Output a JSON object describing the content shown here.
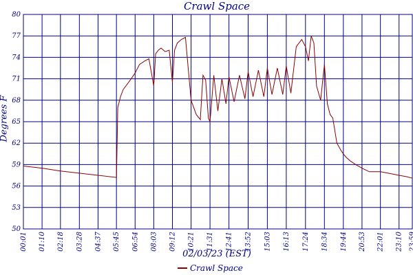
{
  "chart_data": {
    "type": "line",
    "title": "Crawl Space",
    "xlabel": "02/03/23 (EST)",
    "ylabel": "Degrees F",
    "y_ticks": [
      "50",
      "53",
      "56",
      "59",
      "62",
      "65",
      "68",
      "71",
      "74",
      "77",
      "80"
    ],
    "ylim": [
      50,
      80
    ],
    "x_ticks": [
      "00:01",
      "01:10",
      "02:18",
      "03:28",
      "04:37",
      "05:45",
      "06:54",
      "08:03",
      "09:12",
      "10:21",
      "11:31",
      "12:41",
      "13:52",
      "15:03",
      "16:13",
      "17:24",
      "18:34",
      "19:44",
      "20:53",
      "22:01",
      "23:10",
      "23:59"
    ],
    "grid": true,
    "legend": "bottom",
    "series": [
      {
        "name": "Crawl Space",
        "color": "#8b0000",
        "x": [
          "00:01",
          "01:10",
          "02:18",
          "03:28",
          "04:37",
          "05:45",
          "05:50",
          "06:00",
          "06:10",
          "06:30",
          "06:54",
          "07:10",
          "07:30",
          "07:45",
          "08:03",
          "08:10",
          "08:20",
          "08:30",
          "08:45",
          "09:00",
          "09:12",
          "09:20",
          "09:30",
          "09:45",
          "10:00",
          "10:21",
          "10:40",
          "10:55",
          "11:05",
          "11:15",
          "11:25",
          "11:31",
          "11:45",
          "12:00",
          "12:15",
          "12:30",
          "12:41",
          "13:00",
          "13:20",
          "13:40",
          "13:52",
          "14:10",
          "14:30",
          "14:50",
          "15:03",
          "15:20",
          "15:40",
          "16:00",
          "16:13",
          "16:30",
          "16:50",
          "17:10",
          "17:24",
          "17:35",
          "17:45",
          "17:55",
          "18:05",
          "18:20",
          "18:34",
          "18:45",
          "18:55",
          "19:05",
          "19:20",
          "19:35",
          "19:44",
          "19:55",
          "20:10",
          "20:30",
          "20:53",
          "21:20",
          "22:01",
          "22:30",
          "23:10",
          "23:40",
          "23:59"
        ],
        "values": [
          58.8,
          58.5,
          58.1,
          57.8,
          57.5,
          57.2,
          67.0,
          68.5,
          69.5,
          70.5,
          71.8,
          73.0,
          73.5,
          73.8,
          70.0,
          74.5,
          75.0,
          75.3,
          74.8,
          75.0,
          70.5,
          75.0,
          76.0,
          76.5,
          76.8,
          68.0,
          66.0,
          65.3,
          71.5,
          70.8,
          65.5,
          65.0,
          71.5,
          66.5,
          71.0,
          67.5,
          71.3,
          67.8,
          71.5,
          68.2,
          72.0,
          68.5,
          72.2,
          68.5,
          72.5,
          68.8,
          72.5,
          68.8,
          72.8,
          69.0,
          75.5,
          76.5,
          75.5,
          73.5,
          77.0,
          76.0,
          70.0,
          68.0,
          73.0,
          67.5,
          66.0,
          65.5,
          62.0,
          61.0,
          60.5,
          60.0,
          59.5,
          59.0,
          58.5,
          58.0,
          58.0,
          57.8,
          57.5,
          57.3,
          57.1
        ]
      }
    ]
  }
}
